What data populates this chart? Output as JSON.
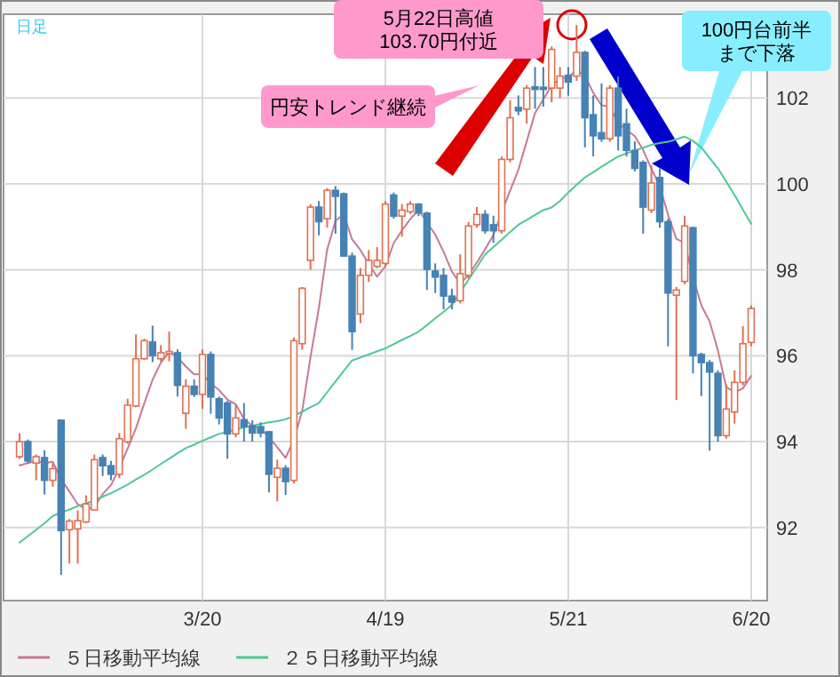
{
  "chart_data": {
    "type": "candlestick",
    "categories": [
      null,
      null,
      null,
      null,
      null,
      null,
      null,
      null,
      null,
      null,
      null,
      null,
      null,
      null,
      null,
      null,
      null,
      null,
      null,
      null,
      null,
      null,
      "3/20",
      null,
      null,
      null,
      null,
      null,
      null,
      null,
      null,
      null,
      null,
      null,
      null,
      null,
      null,
      null,
      null,
      null,
      null,
      null,
      null,
      null,
      "4/19",
      null,
      null,
      null,
      null,
      null,
      null,
      null,
      null,
      null,
      null,
      null,
      null,
      null,
      null,
      null,
      null,
      null,
      null,
      null,
      null,
      null,
      "5/21",
      null,
      null,
      null,
      null,
      null,
      null,
      null,
      null,
      null,
      null,
      null,
      null,
      null,
      null,
      null,
      null,
      null,
      null,
      null,
      null,
      null,
      "6/20"
    ],
    "ohlc": [
      [
        93.65,
        94.2,
        93.6,
        94.0
      ],
      [
        94.0,
        94.05,
        93.5,
        93.55
      ],
      [
        93.5,
        93.7,
        93.1,
        93.65
      ],
      [
        93.63,
        93.8,
        92.77,
        93.1
      ],
      [
        93.1,
        93.5,
        92.95,
        93.37
      ],
      [
        94.5,
        94.5,
        90.9,
        91.93
      ],
      [
        91.95,
        92.2,
        91.16,
        92.15
      ],
      [
        91.97,
        92.4,
        91.16,
        92.16
      ],
      [
        92.13,
        92.75,
        92.1,
        92.55
      ],
      [
        92.41,
        93.7,
        92.4,
        93.58
      ],
      [
        93.63,
        93.7,
        93.2,
        93.44
      ],
      [
        93.44,
        93.55,
        93.1,
        93.24
      ],
      [
        93.24,
        94.2,
        93.15,
        94.07
      ],
      [
        94.0,
        95.0,
        93.95,
        94.85
      ],
      [
        94.83,
        96.5,
        94.8,
        95.93
      ],
      [
        95.93,
        96.4,
        95.9,
        96.35
      ],
      [
        96.32,
        96.7,
        95.85,
        96.0
      ],
      [
        95.93,
        96.25,
        95.87,
        96.07
      ],
      [
        96.05,
        96.56,
        95.87,
        96.1
      ],
      [
        96.07,
        96.15,
        95.05,
        95.31
      ],
      [
        94.66,
        95.45,
        94.3,
        95.29
      ],
      [
        95.29,
        95.45,
        95.04,
        95.1
      ],
      [
        95.1,
        96.15,
        94.76,
        96.03
      ],
      [
        96.03,
        96.1,
        94.65,
        95.04
      ],
      [
        95.0,
        95.05,
        94.4,
        94.55
      ],
      [
        94.9,
        94.95,
        93.6,
        94.18
      ],
      [
        94.18,
        94.85,
        94.1,
        94.55
      ],
      [
        94.51,
        94.9,
        94.0,
        94.35
      ],
      [
        94.37,
        94.5,
        94.0,
        94.2
      ],
      [
        94.35,
        94.45,
        94.1,
        94.2
      ],
      [
        94.23,
        94.25,
        92.82,
        93.24
      ],
      [
        93.17,
        93.58,
        92.61,
        93.38
      ],
      [
        93.38,
        93.45,
        92.76,
        93.07
      ],
      [
        93.1,
        96.42,
        93.03,
        96.35
      ],
      [
        96.28,
        97.6,
        96.14,
        97.57
      ],
      [
        98.22,
        99.53,
        98.0,
        99.46
      ],
      [
        99.46,
        99.6,
        98.8,
        99.12
      ],
      [
        99.19,
        99.9,
        98.98,
        99.85
      ],
      [
        99.85,
        99.95,
        98.84,
        99.71
      ],
      [
        99.77,
        99.8,
        98.3,
        98.32
      ],
      [
        98.32,
        98.4,
        96.14,
        96.56
      ],
      [
        96.97,
        98.04,
        96.76,
        97.87
      ],
      [
        97.87,
        98.46,
        97.72,
        98.22
      ],
      [
        98.08,
        98.53,
        98.04,
        98.22
      ],
      [
        98.15,
        99.6,
        98.08,
        99.53
      ],
      [
        99.74,
        99.8,
        99.19,
        99.25
      ],
      [
        99.25,
        99.53,
        98.77,
        99.39
      ],
      [
        99.35,
        99.6,
        99.3,
        99.53
      ],
      [
        99.53,
        99.55,
        99.25,
        99.32
      ],
      [
        99.32,
        99.35,
        97.53,
        98.01
      ],
      [
        97.97,
        98.15,
        97.46,
        97.83
      ],
      [
        97.87,
        98.04,
        97.08,
        97.39
      ],
      [
        97.39,
        97.56,
        97.08,
        97.25
      ],
      [
        97.28,
        98.36,
        97.22,
        97.91
      ],
      [
        97.87,
        99.11,
        97.8,
        99.02
      ],
      [
        99.05,
        99.46,
        98.98,
        99.29
      ],
      [
        99.29,
        99.39,
        98.84,
        98.91
      ],
      [
        99.05,
        99.26,
        98.63,
        98.91
      ],
      [
        98.91,
        100.64,
        98.84,
        100.57
      ],
      [
        100.57,
        101.95,
        100.5,
        101.54
      ],
      [
        101.78,
        102.06,
        101.6,
        101.7
      ],
      [
        101.74,
        102.3,
        101.4,
        102.23
      ],
      [
        102.26,
        102.72,
        101.75,
        102.2
      ],
      [
        102.25,
        102.72,
        101.8,
        102.2
      ],
      [
        102.23,
        103.2,
        101.9,
        103.13
      ],
      [
        102.23,
        102.72,
        102.0,
        102.51
      ],
      [
        102.53,
        102.72,
        102.05,
        102.37
      ],
      [
        102.51,
        103.7,
        102.4,
        103.06
      ],
      [
        103.06,
        103.1,
        100.85,
        101.54
      ],
      [
        101.61,
        102.06,
        100.64,
        101.12
      ],
      [
        101.19,
        102.34,
        100.98,
        101.05
      ],
      [
        101.05,
        102.3,
        100.98,
        102.23
      ],
      [
        102.23,
        102.5,
        100.78,
        101.12
      ],
      [
        101.4,
        101.75,
        100.64,
        100.78
      ],
      [
        100.78,
        100.99,
        100.29,
        100.36
      ],
      [
        100.5,
        100.55,
        98.84,
        99.46
      ],
      [
        99.39,
        100.43,
        99.32,
        100.02
      ],
      [
        100.15,
        100.36,
        98.98,
        99.12
      ],
      [
        99.12,
        99.19,
        96.22,
        97.46
      ],
      [
        97.41,
        97.6,
        94.97,
        97.53
      ],
      [
        97.73,
        99.26,
        97.66,
        99.02
      ],
      [
        98.98,
        99.0,
        95.59,
        96.0
      ],
      [
        96.03,
        96.07,
        95.06,
        95.84
      ],
      [
        95.84,
        95.9,
        93.79,
        95.62
      ],
      [
        95.59,
        95.66,
        94.0,
        94.14
      ],
      [
        94.14,
        95.32,
        94.07,
        94.76
      ],
      [
        94.69,
        95.66,
        94.42,
        95.38
      ],
      [
        95.38,
        96.69,
        95.31,
        96.28
      ],
      [
        96.31,
        97.17,
        96.22,
        97.1
      ]
    ],
    "colors": [
      "#e07050",
      "#4682b4",
      "#e07050",
      "#4682b4",
      "#e07050",
      "#4682b4",
      "#e07050",
      "#e07050",
      "#e07050",
      "#e07050",
      "#4682b4",
      "#4682b4",
      "#e07050",
      "#e07050",
      "#e07050",
      "#e07050",
      "#4682b4",
      "#e07050",
      "#e07050",
      "#4682b4",
      "#e07050",
      "#4682b4",
      "#e07050",
      "#4682b4",
      "#4682b4",
      "#4682b4",
      "#e07050",
      "#4682b4",
      "#4682b4",
      "#4682b4",
      "#4682b4",
      "#e07050",
      "#4682b4",
      "#e07050",
      "#e07050",
      "#e07050",
      "#4682b4",
      "#e07050",
      "#4682b4",
      "#4682b4",
      "#4682b4",
      "#e07050",
      "#e07050",
      "#e07050",
      "#e07050",
      "#4682b4",
      "#e07050",
      "#e07050",
      "#4682b4",
      "#4682b4",
      "#4682b4",
      "#4682b4",
      "#4682b4",
      "#e07050",
      "#e07050",
      "#e07050",
      "#4682b4",
      "#4682b4",
      "#e07050",
      "#e07050",
      "#4682b4",
      "#e07050",
      "#4682b4",
      "#4682b4",
      "#e07050",
      "#e07050",
      "#4682b4",
      "#e07050",
      "#4682b4",
      "#4682b4",
      "#4682b4",
      "#e07050",
      "#4682b4",
      "#4682b4",
      "#4682b4",
      "#4682b4",
      "#e07050",
      "#4682b4",
      "#4682b4",
      "#e07050",
      "#e07050",
      "#4682b4",
      "#4682b4",
      "#4682b4",
      "#4682b4",
      "#e07050",
      "#e07050",
      "#e07050",
      "#e07050"
    ],
    "series": [
      {
        "name": "５日移動平均線",
        "type": "line",
        "color": "#c87898",
        "values": [
          93.45,
          93.5,
          93.55,
          93.5,
          93.53,
          93.12,
          92.84,
          92.54,
          92.43,
          92.47,
          92.78,
          92.99,
          93.38,
          93.84,
          94.31,
          94.89,
          95.44,
          95.84,
          96.09,
          95.97,
          95.75,
          95.57,
          95.57,
          95.35,
          95.2,
          94.98,
          94.87,
          94.53,
          94.37,
          94.3,
          94.11,
          93.87,
          93.62,
          94.05,
          94.72,
          95.97,
          97.11,
          98.47,
          99.14,
          99.29,
          98.71,
          98.46,
          98.14,
          97.84,
          98.08,
          98.62,
          98.92,
          99.18,
          99.4,
          99.1,
          98.82,
          98.42,
          97.96,
          97.68,
          97.88,
          98.17,
          98.48,
          98.81,
          99.34,
          99.84,
          100.33,
          100.99,
          101.65,
          101.97,
          102.29,
          102.45,
          102.48,
          102.65,
          102.52,
          102.12,
          101.83,
          101.8,
          101.41,
          101.26,
          101.11,
          100.79,
          100.35,
          99.95,
          99.28,
          98.72,
          98.63,
          97.83,
          97.17,
          96.8,
          96.12,
          95.27,
          95.15,
          95.24,
          95.53
        ]
      },
      {
        "name": "２５日移動平均線",
        "type": "line",
        "color": "#50c890",
        "values": [
          91.65,
          91.8,
          91.95,
          92.1,
          92.27,
          92.35,
          92.42,
          92.5,
          92.56,
          92.64,
          92.72,
          92.8,
          92.9,
          93.0,
          93.12,
          93.23,
          93.35,
          93.48,
          93.6,
          93.73,
          93.85,
          93.93,
          94.02,
          94.1,
          94.18,
          94.23,
          94.28,
          94.33,
          94.37,
          94.41,
          94.45,
          94.48,
          94.52,
          94.6,
          94.7,
          94.8,
          94.9,
          95.15,
          95.4,
          95.65,
          95.89,
          95.96,
          96.03,
          96.1,
          96.17,
          96.27,
          96.37,
          96.46,
          96.56,
          96.71,
          96.87,
          97.02,
          97.18,
          97.47,
          97.77,
          98.06,
          98.36,
          98.53,
          98.7,
          98.88,
          99.05,
          99.16,
          99.28,
          99.39,
          99.45,
          99.6,
          99.8,
          99.98,
          100.15,
          100.27,
          100.4,
          100.52,
          100.64,
          100.71,
          100.78,
          100.84,
          100.91,
          100.95,
          100.98,
          101.04,
          101.1,
          101.0,
          100.85,
          100.6,
          100.36,
          100.05,
          99.74,
          99.4,
          99.07
        ]
      }
    ],
    "ylim": [
      90.3,
      103.95
    ],
    "yticks": [
      92,
      94,
      96,
      98,
      100,
      102
    ],
    "grid": true,
    "legend": "bottom",
    "annotations": [
      "日足",
      "5月22日高値",
      "103.70円付近",
      "円安トレンド継続",
      "100円台前半",
      "まで下落"
    ]
  }
}
